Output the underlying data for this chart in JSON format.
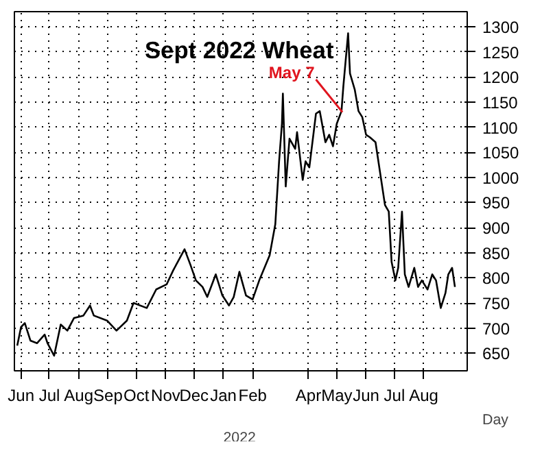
{
  "chart_data": {
    "type": "line",
    "title": "Sept 2022 Wheat",
    "xlabel": "Day",
    "x": [
      "2021-05-28",
      "2021-06-01",
      "2021-06-05",
      "2021-06-11",
      "2021-06-18",
      "2021-06-26",
      "2021-06-29",
      "2021-07-06",
      "2021-07-13",
      "2021-07-20",
      "2021-07-27",
      "2021-08-06",
      "2021-08-13",
      "2021-08-17",
      "2021-08-31",
      "2021-09-10",
      "2021-09-21",
      "2021-09-28",
      "2021-10-12",
      "2021-10-22",
      "2021-11-02",
      "2021-11-09",
      "2021-11-21",
      "2021-11-27",
      "2021-12-03",
      "2021-12-10",
      "2021-12-15",
      "2021-12-24",
      "2021-12-31",
      "2022-01-07",
      "2022-01-12",
      "2022-01-18",
      "2022-01-25",
      "2022-02-01",
      "2022-02-08",
      "2022-02-19",
      "2022-02-25",
      "2022-03-01",
      "2022-03-04",
      "2022-03-05",
      "2022-03-08",
      "2022-03-12",
      "2022-03-18",
      "2022-03-20",
      "2022-03-26",
      "2022-03-29",
      "2022-04-02",
      "2022-04-09",
      "2022-04-13",
      "2022-04-19",
      "2022-04-23",
      "2022-04-27",
      "2022-05-01",
      "2022-05-06",
      "2022-05-08",
      "2022-05-13",
      "2022-05-15",
      "2022-05-20",
      "2022-05-24",
      "2022-05-28",
      "2022-06-01",
      "2022-06-05",
      "2022-06-11",
      "2022-06-17",
      "2022-06-21",
      "2022-06-25",
      "2022-06-28",
      "2022-07-02",
      "2022-07-05",
      "2022-07-09",
      "2022-07-12",
      "2022-07-16",
      "2022-07-22",
      "2022-07-26",
      "2022-07-30",
      "2022-08-05",
      "2022-08-10",
      "2022-08-14",
      "2022-08-19",
      "2022-08-24",
      "2022-08-27",
      "2022-08-31",
      "2022-09-03"
    ],
    "series": [
      {
        "color": "#000000",
        "values": [
          665,
          702,
          710,
          675,
          670,
          687,
          670,
          645,
          707,
          695,
          720,
          725,
          745,
          725,
          715,
          695,
          715,
          750,
          740,
          777,
          787,
          815,
          857,
          827,
          795,
          782,
          762,
          807,
          765,
          745,
          762,
          812,
          765,
          757,
          795,
          845,
          907,
          1032,
          1107,
          1167,
          982,
          1077,
          1057,
          1090,
          995,
          1032,
          1020,
          1127,
          1132,
          1070,
          1085,
          1062,
          1107,
          1132,
          1182,
          1287,
          1207,
          1175,
          1132,
          1120,
          1085,
          1080,
          1070,
          995,
          945,
          932,
          832,
          795,
          820,
          932,
          807,
          782,
          820,
          782,
          795,
          777,
          807,
          795,
          740,
          770,
          807,
          820,
          782
        ]
      }
    ],
    "xlim": [
      "2021-05-25",
      "2022-09-16"
    ],
    "xticks": [
      {
        "value": "2021-06-01",
        "label": "Jun"
      },
      {
        "value": "2021-07-01",
        "label": "Jul"
      },
      {
        "value": "2021-08-01",
        "label": "Aug"
      },
      {
        "value": "2021-09-01",
        "label": "Sep"
      },
      {
        "value": "2021-10-01",
        "label": "Oct"
      },
      {
        "value": "2021-11-01",
        "label": "Nov"
      },
      {
        "value": "2021-12-01",
        "label": "Dec"
      },
      {
        "value": "2022-01-01",
        "label": "Jan"
      },
      {
        "value": "2022-02-01",
        "label": "Feb"
      },
      {
        "value": "2022-04-01",
        "label": "Apr"
      },
      {
        "value": "2022-05-01",
        "label": "May"
      },
      {
        "value": "2022-06-01",
        "label": "Jun"
      },
      {
        "value": "2022-07-01",
        "label": "Jul"
      },
      {
        "value": "2022-08-01",
        "label": "Aug"
      }
    ],
    "ylim": [
      615,
      1330
    ],
    "yticks": [
      650,
      700,
      750,
      800,
      850,
      900,
      950,
      1000,
      1050,
      1100,
      1150,
      1200,
      1250,
      1300
    ],
    "annotations": [
      {
        "text": "May 7",
        "x": "2022-05-07",
        "y": 1130
      },
      "2022"
    ],
    "grid": true,
    "marker": "none",
    "line_style": "solid"
  }
}
